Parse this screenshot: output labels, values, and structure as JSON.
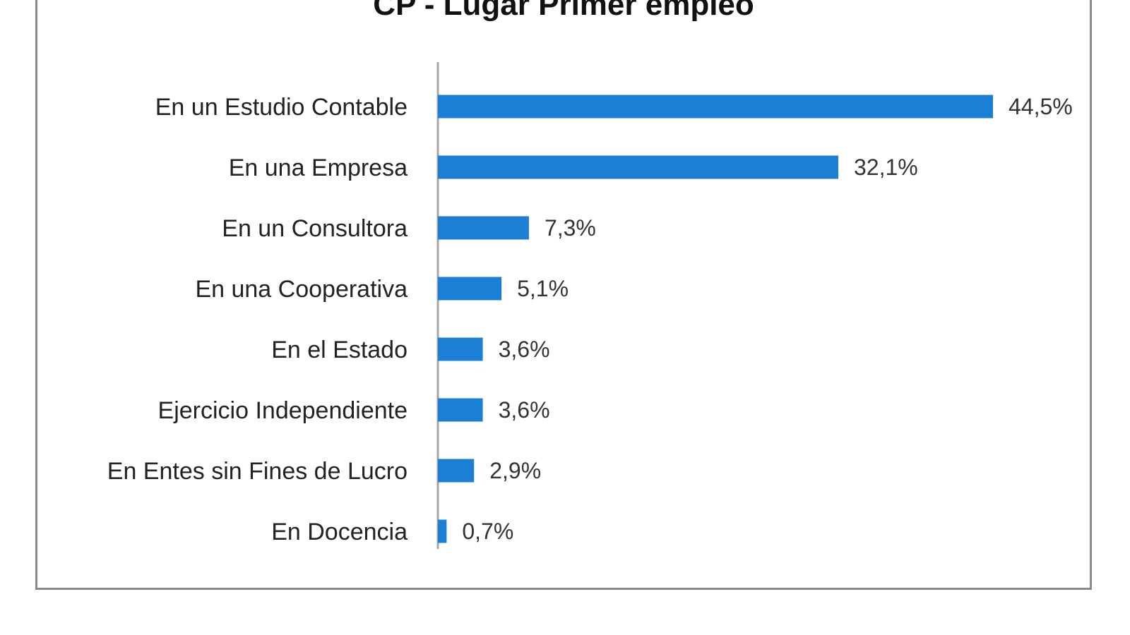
{
  "chart_data": {
    "type": "bar",
    "orientation": "horizontal",
    "title": "CP - Lugar Primer empleo",
    "xlabel": "",
    "ylabel": "",
    "categories": [
      "En un Estudio Contable",
      "En una Empresa",
      "En un Consultora",
      "En una Cooperativa",
      "En el Estado",
      "Ejercicio Independiente",
      "En Entes sin Fines de Lucro",
      "En Docencia"
    ],
    "values": [
      44.5,
      32.1,
      7.3,
      5.1,
      3.6,
      3.6,
      2.9,
      0.7
    ],
    "data_labels": [
      "44,5%",
      "32,1%",
      "7,3%",
      "5,1%",
      "3,6%",
      "3,6%",
      "2,9%",
      "0,7%"
    ],
    "xlim": [
      0,
      44.5
    ],
    "grid": false,
    "legend": "none",
    "bar_color": "#1b7fd6",
    "axis_color": "#a6a6a6"
  }
}
